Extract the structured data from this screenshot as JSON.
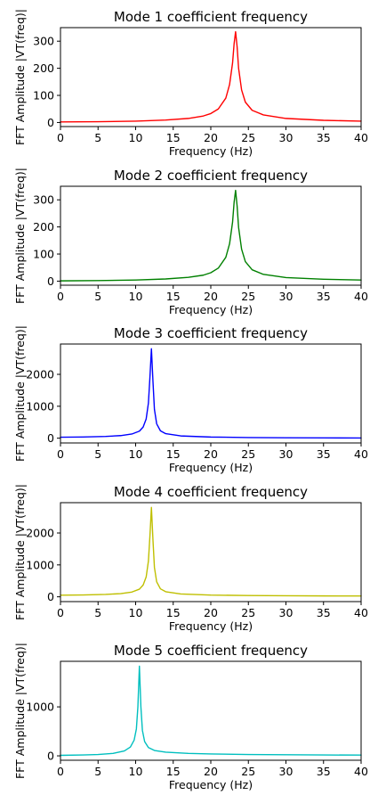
{
  "chart_data": [
    {
      "type": "line",
      "title": "Mode 1 coefficient frequency",
      "xlabel": "Frequency (Hz)",
      "ylabel": "FFT Amplitude |VT(freq)|",
      "xlim": [
        0,
        40
      ],
      "ylim": [
        -15,
        350
      ],
      "xticks": [
        0,
        5,
        10,
        15,
        20,
        25,
        30,
        35,
        40
      ],
      "yticks": [
        0,
        100,
        200,
        300
      ],
      "grid": false,
      "color": "#ff0000",
      "series": [
        {
          "x": [
            0,
            5,
            10,
            14,
            17,
            19,
            20,
            21,
            22,
            22.5,
            22.9,
            23.1,
            23.3,
            23.5,
            23.7,
            24.1,
            24.6,
            25.5,
            27,
            30,
            35,
            40
          ],
          "y": [
            2,
            3,
            5,
            9,
            15,
            24,
            33,
            50,
            90,
            140,
            220,
            290,
            335,
            280,
            200,
            120,
            75,
            45,
            28,
            15,
            8,
            5
          ]
        }
      ]
    },
    {
      "type": "line",
      "title": "Mode 2 coefficient frequency",
      "xlabel": "Frequency (Hz)",
      "ylabel": "FFT Amplitude |VT(freq)|",
      "xlim": [
        0,
        40
      ],
      "ylim": [
        -15,
        350
      ],
      "xticks": [
        0,
        5,
        10,
        15,
        20,
        25,
        30,
        35,
        40
      ],
      "yticks": [
        0,
        100,
        200,
        300
      ],
      "grid": false,
      "color": "#008000",
      "series": [
        {
          "x": [
            0,
            5,
            10,
            14,
            17,
            19,
            20,
            21,
            22,
            22.5,
            22.9,
            23.1,
            23.3,
            23.5,
            23.7,
            24.1,
            24.6,
            25.5,
            27,
            30,
            35,
            40
          ],
          "y": [
            1,
            2,
            4,
            8,
            14,
            22,
            31,
            48,
            88,
            138,
            218,
            290,
            335,
            278,
            198,
            118,
            72,
            42,
            25,
            13,
            7,
            4
          ]
        }
      ]
    },
    {
      "type": "line",
      "title": "Mode 3 coefficient frequency",
      "xlabel": "Frequency (Hz)",
      "ylabel": "FFT Amplitude |VT(freq)|",
      "xlim": [
        0,
        40
      ],
      "ylim": [
        -150,
        2950
      ],
      "xticks": [
        0,
        5,
        10,
        15,
        20,
        25,
        30,
        35,
        40
      ],
      "yticks": [
        0,
        1000,
        2000
      ],
      "grid": false,
      "color": "#0000ff",
      "series": [
        {
          "x": [
            0,
            3,
            6,
            8,
            9.5,
            10.5,
            11,
            11.4,
            11.7,
            11.9,
            12.1,
            12.3,
            12.5,
            12.8,
            13.3,
            14,
            16,
            20,
            25,
            30,
            35,
            40
          ],
          "y": [
            30,
            38,
            55,
            80,
            130,
            220,
            350,
            600,
            1100,
            1900,
            2800,
            1800,
            900,
            450,
            230,
            140,
            70,
            35,
            20,
            12,
            8,
            6
          ]
        }
      ]
    },
    {
      "type": "line",
      "title": "Mode 4 coefficient frequency",
      "xlabel": "Frequency (Hz)",
      "ylabel": "FFT Amplitude |VT(freq)|",
      "xlim": [
        0,
        40
      ],
      "ylim": [
        -150,
        2950
      ],
      "xticks": [
        0,
        5,
        10,
        15,
        20,
        25,
        30,
        35,
        40
      ],
      "yticks": [
        0,
        1000,
        2000
      ],
      "grid": false,
      "color": "#bfbf00",
      "series": [
        {
          "x": [
            0,
            3,
            6,
            8,
            9.5,
            10.5,
            11,
            11.4,
            11.7,
            11.9,
            12.1,
            12.3,
            12.5,
            12.8,
            13.3,
            14,
            16,
            20,
            25,
            30,
            35,
            40
          ],
          "y": [
            50,
            58,
            75,
            100,
            150,
            240,
            370,
            620,
            1120,
            1900,
            2800,
            1800,
            920,
            470,
            250,
            160,
            90,
            55,
            40,
            32,
            28,
            26
          ]
        }
      ]
    },
    {
      "type": "line",
      "title": "Mode 5 coefficient frequency",
      "xlabel": "Frequency (Hz)",
      "ylabel": "FFT Amplitude |VT(freq)|",
      "xlim": [
        0,
        40
      ],
      "ylim": [
        -90,
        1930
      ],
      "xticks": [
        0,
        5,
        10,
        15,
        20,
        25,
        30,
        35,
        40
      ],
      "yticks": [
        0,
        1000
      ],
      "grid": false,
      "color": "#00bfbf",
      "series": [
        {
          "x": [
            0,
            3,
            5,
            7,
            8.5,
            9.3,
            9.8,
            10.1,
            10.3,
            10.5,
            10.7,
            10.9,
            11.2,
            11.7,
            12.5,
            14,
            17,
            20,
            25,
            30,
            35,
            40
          ],
          "y": [
            10,
            18,
            28,
            50,
            100,
            180,
            320,
            550,
            1000,
            1830,
            1000,
            520,
            290,
            170,
            110,
            75,
            50,
            38,
            28,
            22,
            18,
            15
          ]
        }
      ]
    }
  ]
}
